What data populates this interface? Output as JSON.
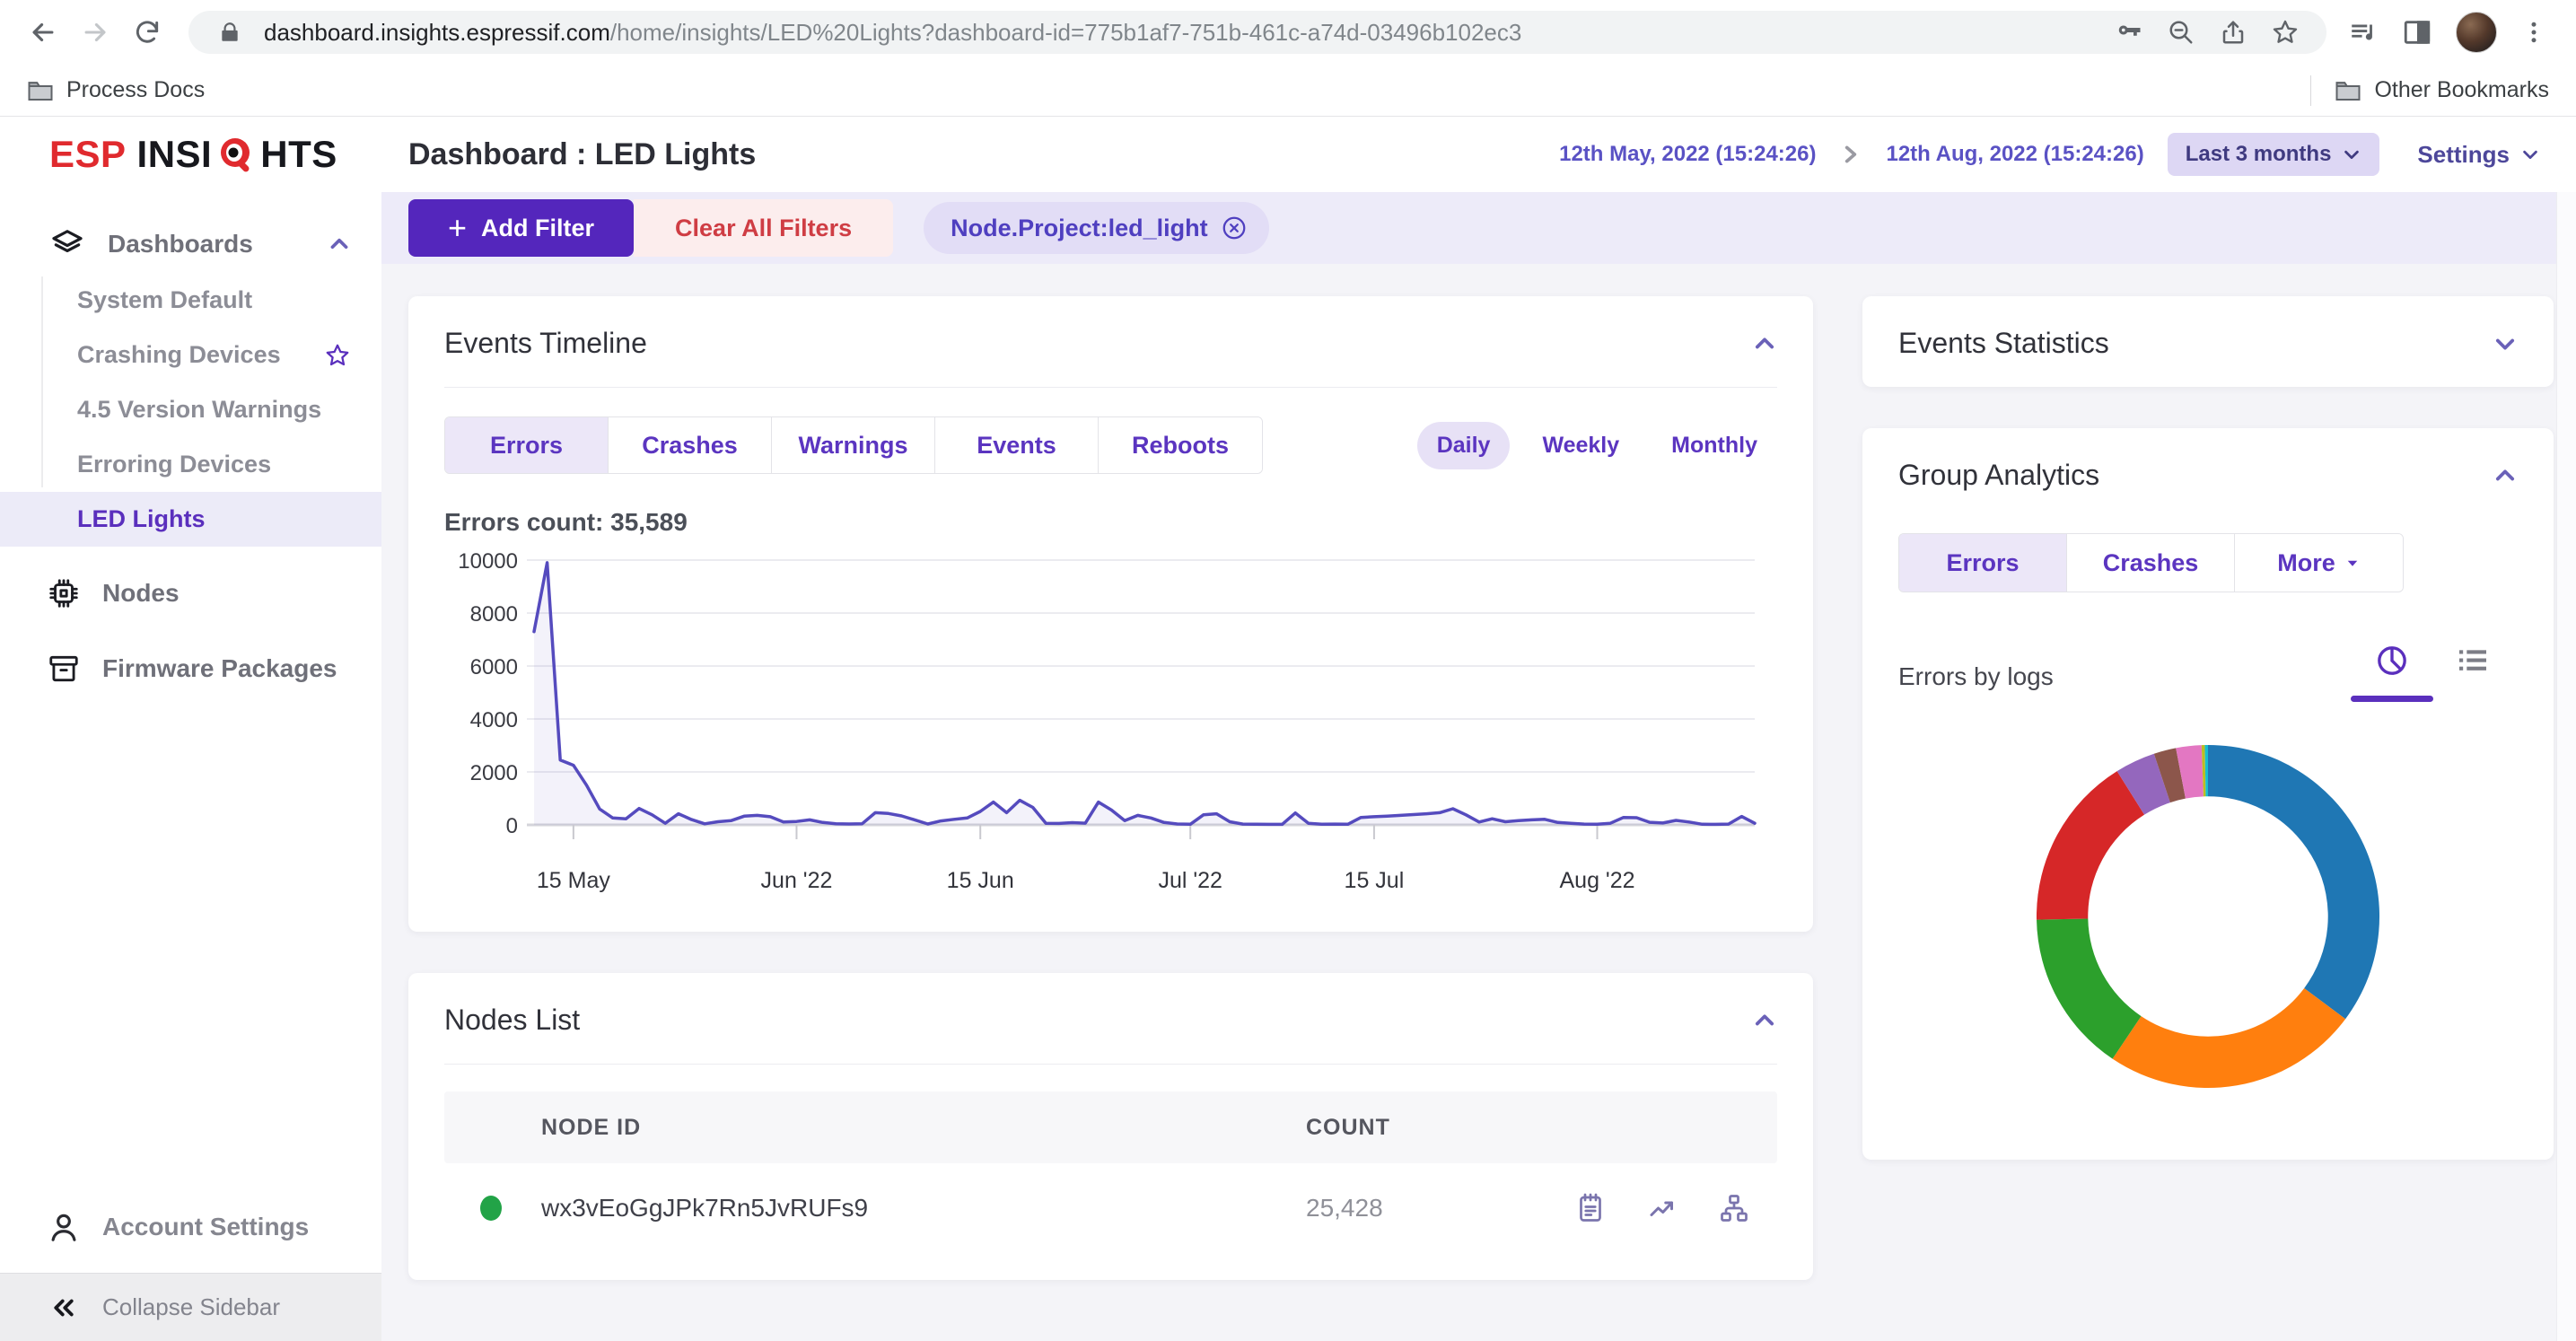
{
  "browser": {
    "url_domain": "dashboard.insights.espressif.com",
    "url_path": "/home/insights/LED%20Lights?dashboard-id=775b1af7-751b-461c-a74d-03496b102ec3",
    "bookmark_left": "Process Docs",
    "bookmark_right": "Other Bookmarks"
  },
  "brand": {
    "esp": "ESP",
    "insi": "INSI",
    "hts": "HTS"
  },
  "header": {
    "title": "Dashboard : LED Lights",
    "date_from": "12th May, 2022 (15:24:26)",
    "date_to": "12th Aug, 2022 (15:24:26)",
    "range_label": "Last 3 months",
    "settings_label": "Settings"
  },
  "sidebar": {
    "dashboards_label": "Dashboards",
    "items": [
      {
        "label": "System Default"
      },
      {
        "label": "Crashing Devices"
      },
      {
        "label": "4.5 Version Warnings"
      },
      {
        "label": "Erroring Devices"
      },
      {
        "label": "LED Lights"
      }
    ],
    "nodes_label": "Nodes",
    "firmware_label": "Firmware Packages",
    "account_label": "Account Settings",
    "collapse_label": "Collapse Sidebar"
  },
  "filters": {
    "add_label": "Add Filter",
    "clear_label": "Clear All Filters",
    "chip_label": "Node.Project:led_light"
  },
  "events_timeline": {
    "title": "Events Timeline",
    "tabs": [
      "Errors",
      "Crashes",
      "Warnings",
      "Events",
      "Reboots"
    ],
    "periods": [
      "Daily",
      "Weekly",
      "Monthly"
    ],
    "count_label": "Errors count: 35,589"
  },
  "events_statistics": {
    "title": "Events Statistics"
  },
  "group_analytics": {
    "title": "Group Analytics",
    "tabs": [
      "Errors",
      "Crashes",
      "More"
    ],
    "subtitle": "Errors by logs"
  },
  "nodes_list": {
    "title": "Nodes List",
    "columns": [
      "NODE ID",
      "COUNT"
    ],
    "rows": [
      {
        "node_id": "wx3vEoGgJPk7Rn5JvRUFs9",
        "count": "25,428",
        "status_color": "#22a347"
      }
    ]
  },
  "chart_data": [
    {
      "type": "line",
      "title": "Errors count: 35,589",
      "x_start": "2022-05-12",
      "x_end": "2022-08-13",
      "x_tick_labels": [
        {
          "label": "15 May",
          "i": 3
        },
        {
          "label": "Jun '22",
          "i": 20
        },
        {
          "label": "15 Jun",
          "i": 34
        },
        {
          "label": "Jul '22",
          "i": 50
        },
        {
          "label": "15 Jul",
          "i": 64
        },
        {
          "label": "Aug '22",
          "i": 81
        }
      ],
      "y_ticks": [
        0,
        2000,
        4000,
        6000,
        8000,
        10000
      ],
      "ylim": [
        0,
        10000
      ],
      "grid": true,
      "line_color": "#554bbe",
      "values": [
        7300,
        9900,
        2450,
        2250,
        1500,
        600,
        260,
        230,
        620,
        380,
        60,
        420,
        200,
        40,
        120,
        160,
        330,
        360,
        310,
        110,
        130,
        190,
        90,
        40,
        35,
        45,
        460,
        430,
        340,
        190,
        35,
        150,
        210,
        260,
        510,
        860,
        460,
        930,
        660,
        60,
        55,
        85,
        65,
        860,
        560,
        160,
        360,
        260,
        90,
        35,
        25,
        380,
        420,
        120,
        30,
        25,
        20,
        20,
        450,
        60,
        25,
        30,
        25,
        280,
        310,
        330,
        360,
        390,
        420,
        460,
        610,
        380,
        110,
        230,
        120,
        160,
        190,
        210,
        90,
        60,
        30,
        25,
        60,
        280,
        270,
        100,
        70,
        170,
        110,
        25,
        20,
        30,
        320,
        60
      ]
    },
    {
      "type": "pie",
      "subtype": "donut",
      "title": "Errors by logs",
      "values_pct": [
        35.2,
        24.2,
        15.3,
        16.4,
        3.8,
        2.1,
        2.4,
        0.3,
        0.3
      ],
      "colors": [
        "#1f77b4",
        "#ff7f0e",
        "#2ca02c",
        "#d62728",
        "#9467bd",
        "#8c564b",
        "#e377c2",
        "#bcbd22",
        "#17becf"
      ],
      "start_angle_deg": 0,
      "direction": "clockwise",
      "inner_radius_ratio": 0.7,
      "legend": "none"
    }
  ]
}
